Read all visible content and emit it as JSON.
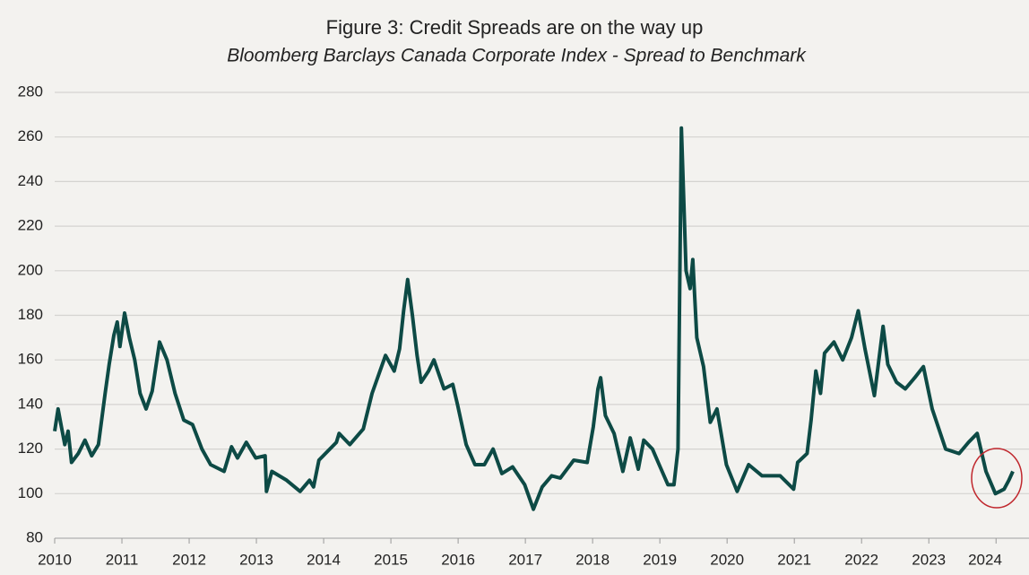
{
  "chart_data": {
    "type": "line",
    "title": "Figure 3: Credit Spreads are on the way up",
    "subtitle": "Bloomberg Barclays Canada Corporate Index - Spread to Benchmark",
    "x": [
      2010.0,
      2010.05,
      2010.1,
      2010.15,
      2010.2,
      2010.25,
      2010.35,
      2010.45,
      2010.55,
      2010.65,
      2010.75,
      2010.81,
      2010.88,
      2010.93,
      2010.97,
      2011.04,
      2011.11,
      2011.19,
      2011.27,
      2011.36,
      2011.45,
      2011.56,
      2011.67,
      2011.79,
      2011.92,
      2012.05,
      2012.19,
      2012.32,
      2012.52,
      2012.63,
      2012.72,
      2012.85,
      2012.99,
      2013.13,
      2013.15,
      2013.23,
      2013.45,
      2013.65,
      2013.79,
      2013.85,
      2013.93,
      2014.19,
      2014.23,
      2014.39,
      2014.59,
      2014.72,
      2014.92,
      2015.05,
      2015.13,
      2015.19,
      2015.25,
      2015.32,
      2015.39,
      2015.45,
      2015.56,
      2015.64,
      2015.79,
      2015.92,
      2015.99,
      2016.12,
      2016.25,
      2016.39,
      2016.52,
      2016.65,
      2016.81,
      2016.99,
      2017.12,
      2017.25,
      2017.39,
      2017.52,
      2017.72,
      2017.92,
      2018.01,
      2018.08,
      2018.12,
      2018.19,
      2018.32,
      2018.45,
      2018.56,
      2018.68,
      2018.76,
      2018.89,
      2018.99,
      2019.12,
      2019.21,
      2019.27,
      2019.32,
      2019.39,
      2019.45,
      2019.49,
      2019.55,
      2019.65,
      2019.75,
      2019.85,
      2019.99,
      2020.15,
      2020.32,
      2020.52,
      2020.79,
      2020.99,
      2021.05,
      2021.19,
      2021.25,
      2021.32,
      2021.39,
      2021.45,
      2021.59,
      2021.72,
      2021.85,
      2021.95,
      2022.05,
      2022.19,
      2022.32,
      2022.39,
      2022.52,
      2022.65,
      2022.79,
      2022.92,
      2023.05,
      2023.25,
      2023.45,
      2023.59,
      2023.72,
      2023.85,
      2023.99,
      2024.12,
      2024.19,
      2024.25
    ],
    "series": [
      {
        "name": "Spread to Benchmark",
        "color": "#0d4a45",
        "values": [
          128,
          138,
          130,
          122,
          128,
          114,
          118,
          124,
          117,
          122,
          145,
          158,
          171,
          177,
          166,
          181,
          170,
          160,
          145,
          138,
          146,
          168,
          160,
          145,
          133,
          131,
          120,
          113,
          110,
          121,
          116,
          123,
          116,
          117,
          101,
          110,
          106,
          101,
          106,
          103,
          115,
          123,
          127,
          122,
          129,
          145,
          162,
          155,
          165,
          182,
          196,
          180,
          162,
          150,
          155,
          160,
          147,
          149,
          140,
          122,
          113,
          113,
          120,
          109,
          112,
          104,
          93,
          103,
          108,
          107,
          115,
          114,
          130,
          147,
          152,
          135,
          127,
          110,
          125,
          111,
          124,
          120,
          113,
          104,
          104,
          120,
          264,
          200,
          192,
          205,
          170,
          157,
          132,
          138,
          113,
          101,
          113,
          108,
          108,
          102,
          114,
          118,
          133,
          155,
          145,
          163,
          168,
          160,
          170,
          182,
          165,
          144,
          175,
          158,
          150,
          147,
          152,
          157,
          138,
          120,
          118,
          123,
          127,
          110,
          100,
          102,
          106,
          110
        ]
      }
    ],
    "xlim": [
      2010,
      2024.49
    ],
    "xticks": [
      2010,
      2011,
      2012,
      2013,
      2014,
      2015,
      2016,
      2017,
      2018,
      2019,
      2020,
      2021,
      2022,
      2023,
      2024
    ],
    "ylim": [
      80,
      280
    ],
    "yticks": [
      80,
      100,
      120,
      140,
      160,
      180,
      200,
      220,
      240,
      260,
      280
    ],
    "grid": true
  }
}
